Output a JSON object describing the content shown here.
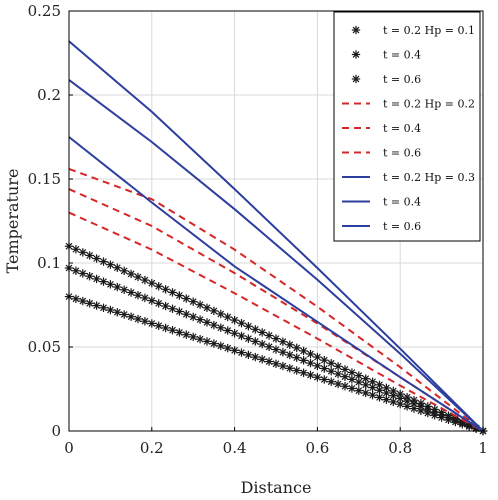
{
  "chart_data": {
    "type": "line",
    "xlabel": "Distance",
    "ylabel": "Temperature",
    "xlim": [
      0,
      1
    ],
    "ylim": [
      0,
      0.25
    ],
    "xticks": [
      "0",
      "0.2",
      "0.4",
      "0.6",
      "0.8",
      "1"
    ],
    "yticks": [
      "0",
      "0.05",
      "0.1",
      "0.15",
      "0.2",
      "0.25"
    ],
    "grid": true,
    "legend_position": "top-right",
    "series": [
      {
        "name": "t = 0.2  Hp = 0.1",
        "style": "asterisk",
        "color": "#1a1a1a",
        "x": [
          0,
          1
        ],
        "y": [
          0.08,
          0.0
        ]
      },
      {
        "name": "t = 0.4",
        "style": "asterisk",
        "color": "#1a1a1a",
        "x": [
          0,
          1
        ],
        "y": [
          0.097,
          0.0
        ]
      },
      {
        "name": "t = 0.6",
        "style": "asterisk",
        "color": "#1a1a1a",
        "x": [
          0,
          1
        ],
        "y": [
          0.11,
          0.0
        ]
      },
      {
        "name": "t = 0.2  Hp = 0.2",
        "style": "dashed",
        "color": "#d62728",
        "x": [
          0,
          0.2,
          0.4,
          0.6,
          0.8,
          1
        ],
        "y": [
          0.13,
          0.108,
          0.082,
          0.055,
          0.027,
          0.0
        ]
      },
      {
        "name": "t = 0.4",
        "style": "dashed",
        "color": "#d62728",
        "x": [
          0,
          0.2,
          0.4,
          0.6,
          0.8,
          1
        ],
        "y": [
          0.144,
          0.122,
          0.094,
          0.064,
          0.032,
          0.0
        ]
      },
      {
        "name": "t = 0.6",
        "style": "dashed",
        "color": "#d62728",
        "x": [
          0,
          0.2,
          0.4,
          0.6,
          0.8,
          1
        ],
        "y": [
          0.156,
          0.138,
          0.108,
          0.074,
          0.038,
          0.0
        ]
      },
      {
        "name": "t = 0.2  Hp = 0.3",
        "style": "solid",
        "color": "#2c3e9e",
        "x": [
          0,
          0.2,
          0.4,
          0.6,
          0.8,
          1
        ],
        "y": [
          0.175,
          0.136,
          0.098,
          0.065,
          0.032,
          0.0
        ]
      },
      {
        "name": "t = 0.4",
        "style": "solid",
        "color": "#2c3e9e",
        "x": [
          0,
          0.2,
          0.4,
          0.6,
          0.8,
          1
        ],
        "y": [
          0.209,
          0.172,
          0.132,
          0.09,
          0.046,
          0.0
        ]
      },
      {
        "name": "t = 0.6",
        "style": "solid",
        "color": "#2c3e9e",
        "x": [
          0,
          0.2,
          0.4,
          0.6,
          0.8,
          1
        ],
        "y": [
          0.232,
          0.19,
          0.144,
          0.097,
          0.049,
          0.0
        ]
      }
    ]
  }
}
